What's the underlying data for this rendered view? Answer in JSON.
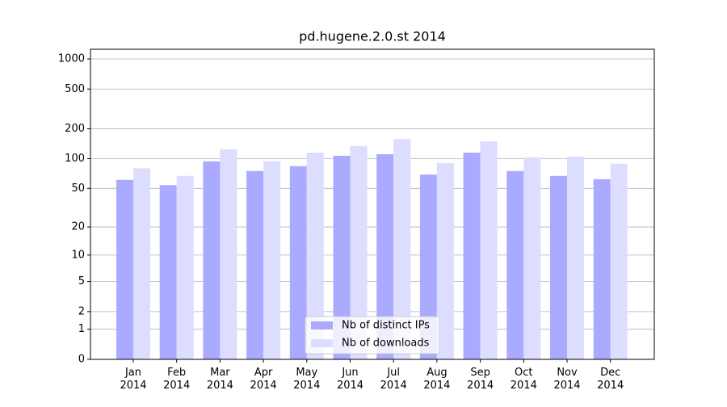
{
  "chart_data": {
    "type": "bar",
    "title": "pd.hugene.2.0.st 2014",
    "scale": "log1p",
    "grid": true,
    "legend": "lower center",
    "categories": [
      "Jan\n2014",
      "Feb\n2014",
      "Mar\n2014",
      "Apr\n2014",
      "May\n2014",
      "Jun\n2014",
      "Jul\n2014",
      "Aug\n2014",
      "Sep\n2014",
      "Oct\n2014",
      "Nov\n2014",
      "Dec\n2014"
    ],
    "series": [
      {
        "name": "Nb of distinct IPs",
        "color": "#aaaaff",
        "values": [
          61,
          54,
          94,
          75,
          84,
          107,
          111,
          69,
          115,
          75,
          67,
          62
        ]
      },
      {
        "name": "Nb of downloads",
        "color": "#ddddff",
        "values": [
          80,
          67,
          124,
          94,
          115,
          134,
          158,
          90,
          149,
          103,
          105,
          89
        ]
      }
    ],
    "ylim": [
      0,
      1250
    ],
    "yticks": [
      0,
      1,
      2,
      5,
      10,
      20,
      50,
      100,
      200,
      500,
      1000
    ]
  }
}
